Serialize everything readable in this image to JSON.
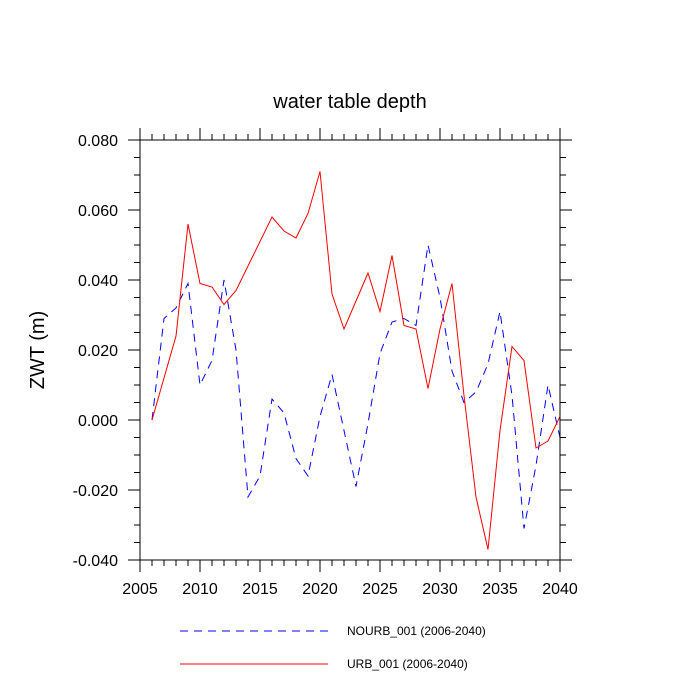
{
  "chart_data": {
    "type": "line",
    "title": "water table depth",
    "xlabel": "",
    "ylabel": "ZWT  (m)",
    "xlim": [
      2005,
      2040
    ],
    "ylim": [
      -0.04,
      0.08
    ],
    "x_ticks": [
      2005,
      2010,
      2015,
      2020,
      2025,
      2030,
      2035,
      2040
    ],
    "x_tick_labels": [
      "2005",
      "2010",
      "2015",
      "2020",
      "2025",
      "2030",
      "2035",
      "2040"
    ],
    "y_ticks": [
      -0.04,
      -0.02,
      0.0,
      0.02,
      0.04,
      0.06,
      0.08
    ],
    "y_tick_labels": [
      "-0.040",
      "-0.020",
      "0.000",
      "0.020",
      "0.040",
      "0.060",
      "0.080"
    ],
    "grid": false,
    "legend_position": "bottom",
    "x": [
      2006,
      2007,
      2008,
      2009,
      2010,
      2011,
      2012,
      2013,
      2014,
      2015,
      2016,
      2017,
      2018,
      2019,
      2020,
      2021,
      2022,
      2023,
      2024,
      2025,
      2026,
      2027,
      2028,
      2029,
      2030,
      2031,
      2032,
      2033,
      2034,
      2035,
      2036,
      2037,
      2038,
      2039,
      2040
    ],
    "series": [
      {
        "name": "NOURB_001 (2006-2040)",
        "color": "#0000ff",
        "dash": "dashed",
        "values": [
          0.0,
          0.029,
          0.032,
          0.039,
          0.01,
          0.017,
          0.04,
          0.02,
          -0.022,
          -0.016,
          0.006,
          0.002,
          -0.011,
          -0.016,
          0.001,
          0.013,
          -0.003,
          -0.019,
          -0.001,
          0.019,
          0.028,
          0.029,
          0.027,
          0.05,
          0.035,
          0.014,
          0.005,
          0.008,
          0.016,
          0.031,
          0.007,
          -0.031,
          -0.013,
          0.01,
          -0.005
        ]
      },
      {
        "name": "URB_001 (2006-2040)",
        "color": "#ff0000",
        "dash": "solid",
        "values": [
          0.0,
          0.012,
          0.024,
          0.056,
          0.039,
          0.038,
          0.033,
          0.037,
          0.044,
          0.051,
          0.058,
          0.054,
          0.052,
          0.059,
          0.071,
          0.036,
          0.026,
          0.034,
          0.042,
          0.031,
          0.047,
          0.027,
          0.026,
          0.009,
          0.026,
          0.039,
          0.007,
          -0.022,
          -0.037,
          -0.003,
          0.021,
          0.017,
          -0.008,
          -0.006,
          0.001
        ]
      }
    ]
  }
}
